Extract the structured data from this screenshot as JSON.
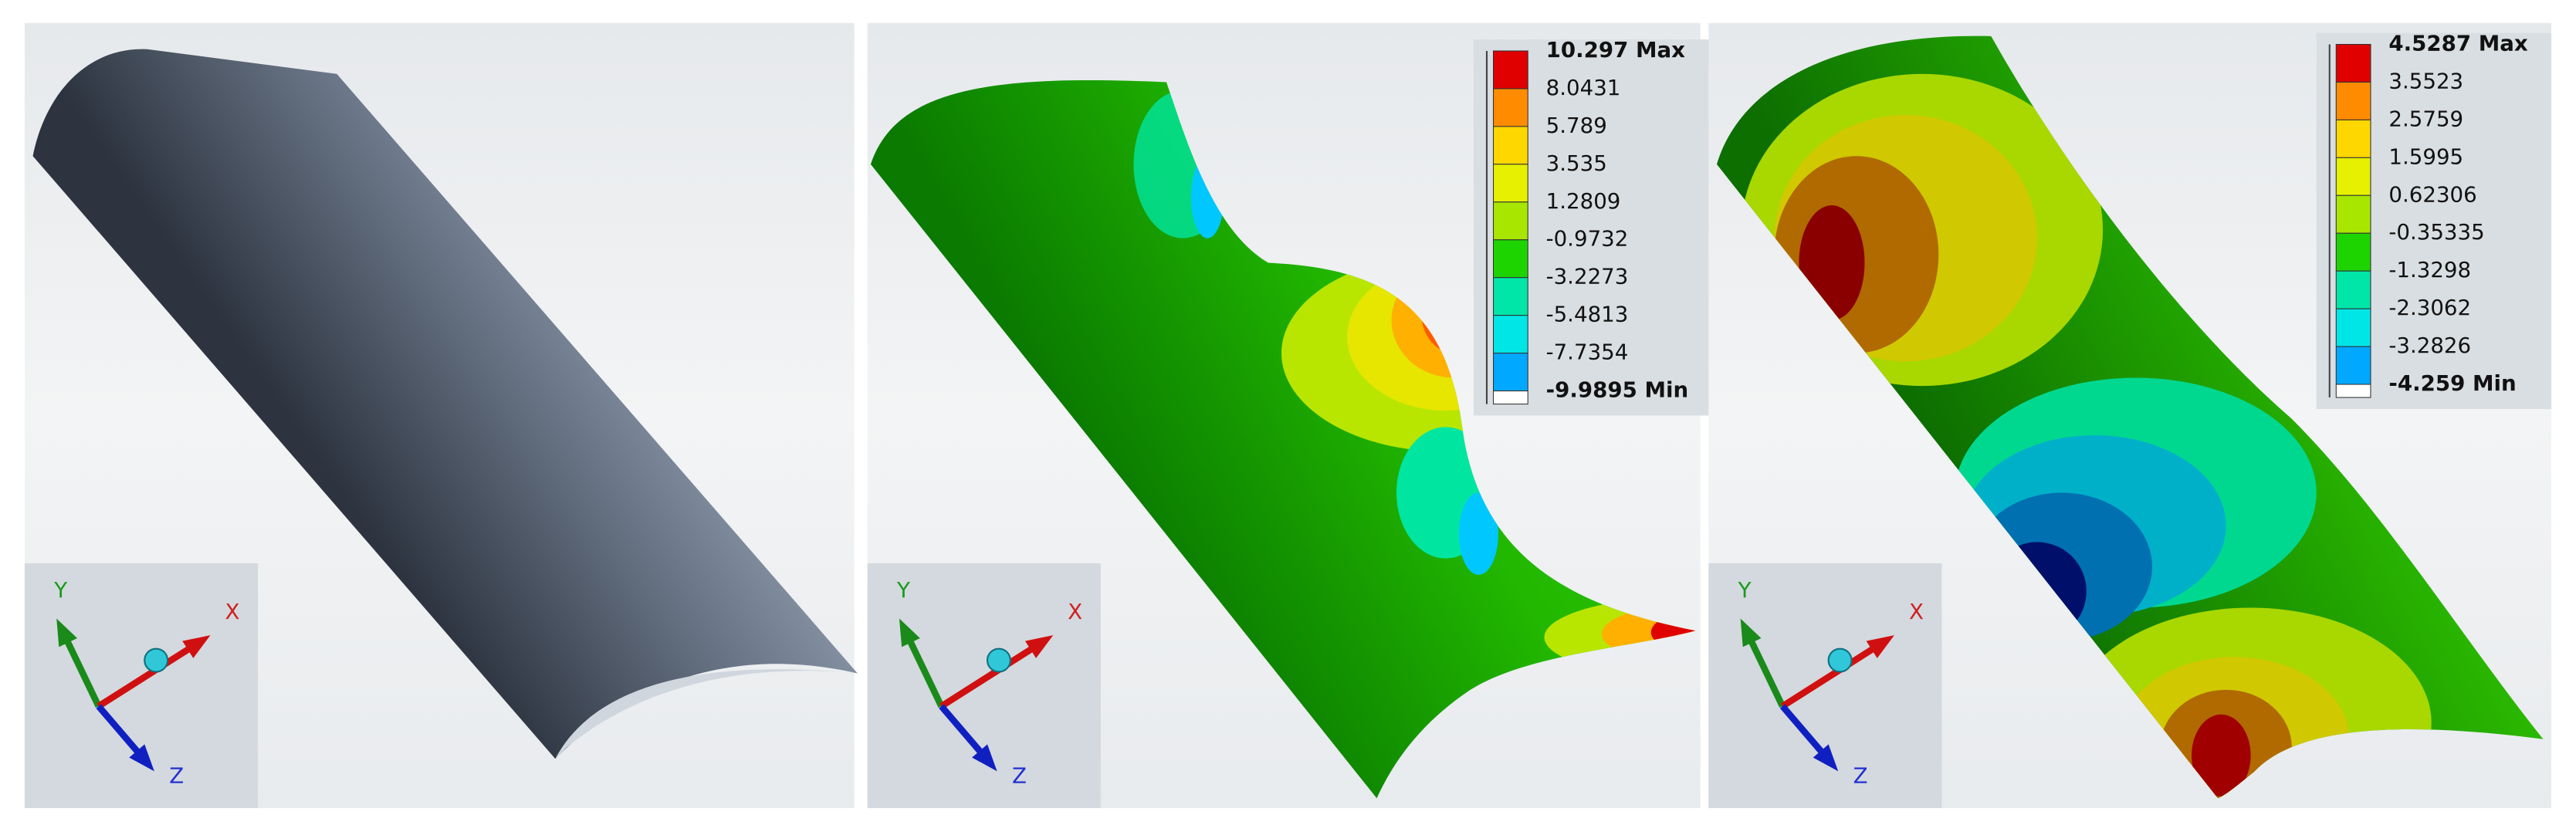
{
  "panels": [
    {
      "triad": {
        "x": "X",
        "y": "Y",
        "z": "Z"
      }
    },
    {
      "triad": {
        "x": "X",
        "y": "Y",
        "z": "Z"
      },
      "legend": [
        "10.297 Max",
        "8.0431",
        "5.789",
        "3.535",
        "1.2809",
        "-0.9732",
        "-3.2273",
        "-5.4813",
        "-7.7354",
        "-9.9895 Min"
      ]
    },
    {
      "triad": {
        "x": "X",
        "y": "Y",
        "z": "Z"
      },
      "legend": [
        "4.5287 Max",
        "3.5523",
        "2.5759",
        "1.5995",
        "0.62306",
        "-0.35335",
        "-1.3298",
        "-2.3062",
        "-3.2826",
        "-4.259 Min"
      ]
    }
  ]
}
